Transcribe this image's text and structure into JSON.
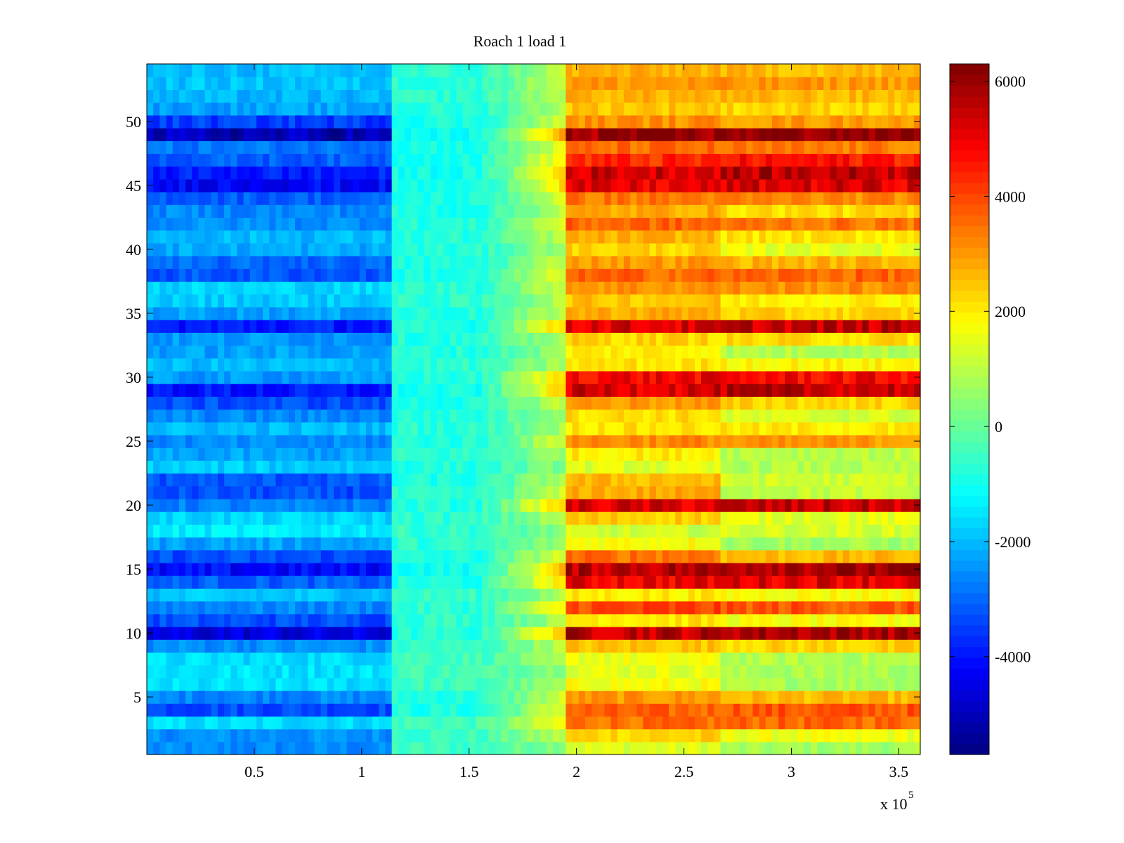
{
  "chart_data": {
    "type": "heatmap",
    "title": "Roach 1 load 1",
    "xlabel": "",
    "ylabel": "",
    "x_exponent_label": {
      "base": "x 10",
      "exponent": "5"
    },
    "x_range": [
      0,
      3.6
    ],
    "y_range": [
      0.5,
      54.5
    ],
    "x_ticks": [
      {
        "value": 0.5,
        "label": "0.5"
      },
      {
        "value": 1,
        "label": "1"
      },
      {
        "value": 1.5,
        "label": "1.5"
      },
      {
        "value": 2,
        "label": "2"
      },
      {
        "value": 2.5,
        "label": "2.5"
      },
      {
        "value": 3,
        "label": "3"
      },
      {
        "value": 3.5,
        "label": "3.5"
      }
    ],
    "y_ticks": [
      {
        "value": 5,
        "label": "5"
      },
      {
        "value": 10,
        "label": "10"
      },
      {
        "value": 15,
        "label": "15"
      },
      {
        "value": 20,
        "label": "20"
      },
      {
        "value": 25,
        "label": "25"
      },
      {
        "value": 30,
        "label": "30"
      },
      {
        "value": 35,
        "label": "35"
      },
      {
        "value": 40,
        "label": "40"
      },
      {
        "value": 45,
        "label": "45"
      },
      {
        "value": 50,
        "label": "50"
      }
    ],
    "rows": 54,
    "x_columns": 120,
    "colormap": "jet",
    "colorbar": {
      "range": [
        -5700,
        6300
      ],
      "ticks": [
        {
          "value": 6000,
          "label": "6000"
        },
        {
          "value": 4000,
          "label": "4000"
        },
        {
          "value": 2000,
          "label": "2000"
        },
        {
          "value": 0,
          "label": "0"
        },
        {
          "value": -2000,
          "label": "-2000"
        },
        {
          "value": -4000,
          "label": "-4000"
        }
      ]
    },
    "segments": [
      {
        "x_start": 0,
        "x_end": 1.15,
        "level": [
          -2600,
          -2500,
          -1600,
          -3300,
          -2600,
          -1600,
          -1500,
          -1600,
          -2500,
          -4600,
          -3300,
          -2600,
          -1900,
          -3100,
          -4200,
          -3300,
          -2300,
          -1400,
          -1700,
          -2700,
          -3300,
          -3200,
          -1800,
          -2300,
          -2600,
          -2000,
          -2600,
          -3300,
          -4000,
          -2400,
          -2000,
          -2300,
          -2400,
          -3900,
          -2300,
          -1800,
          -1700,
          -3200,
          -3000,
          -2200,
          -2000,
          -2500,
          -2600,
          -3100,
          -4200,
          -3900,
          -3100,
          -2800,
          -5100,
          -3500,
          -2300,
          -2100,
          -1900,
          -2000
        ]
      },
      {
        "x_start": 1.15,
        "x_end": 1.95,
        "level": [
          -500,
          -500,
          -400,
          -900,
          -800,
          -500,
          -400,
          -400,
          -600,
          -800,
          -600,
          -700,
          -600,
          -900,
          -1000,
          -900,
          -700,
          -600,
          -700,
          -800,
          -800,
          -900,
          -800,
          -700,
          -800,
          -700,
          -800,
          -900,
          -1000,
          -800,
          -700,
          -800,
          -800,
          -900,
          -800,
          -700,
          -700,
          -900,
          -900,
          -800,
          -800,
          -800,
          -900,
          -900,
          -1000,
          -1000,
          -900,
          -900,
          -1100,
          -900,
          -800,
          -700,
          -700,
          -700
        ]
      },
      {
        "x_start": 1.95,
        "x_end": 2.68,
        "level": [
          1400,
          2300,
          3500,
          3600,
          3000,
          1700,
          1500,
          1600,
          2500,
          5600,
          2100,
          4000,
          2000,
          5000,
          5700,
          3500,
          1800,
          1200,
          2400,
          5200,
          2800,
          2600,
          1400,
          2000,
          3200,
          2100,
          2200,
          3000,
          5300,
          4900,
          2100,
          2000,
          2300,
          5200,
          2800,
          2500,
          3100,
          3600,
          3000,
          2300,
          2700,
          3600,
          2800,
          3400,
          5000,
          5400,
          4300,
          3500,
          6100,
          3100,
          2500,
          2700,
          3000,
          2700
        ]
      },
      {
        "x_start": 2.68,
        "x_end": 3.6,
        "level": [
          700,
          1600,
          3600,
          3800,
          2600,
          800,
          800,
          900,
          2300,
          5900,
          1700,
          3800,
          1800,
          5200,
          6000,
          2600,
          700,
          1300,
          1500,
          5400,
          1100,
          1200,
          900,
          1000,
          3000,
          2000,
          1300,
          2300,
          5500,
          4800,
          1900,
          900,
          2200,
          5500,
          2300,
          2000,
          3100,
          3600,
          2700,
          1500,
          2100,
          3400,
          2200,
          3200,
          5200,
          5600,
          4600,
          3300,
          6200,
          3000,
          2300,
          2600,
          3000,
          2600
        ]
      }
    ],
    "notes": "Rows are sensor channels 1..54; each row shows a roughly constant level per time segment with high-frequency noise; a light sea-green transition band sits near x=1.55-1.95 (x10^5)."
  }
}
